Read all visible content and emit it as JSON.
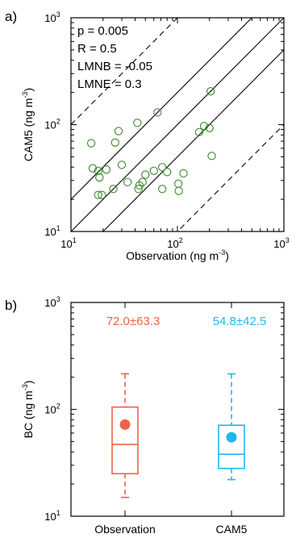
{
  "colors": {
    "scatter": "#3a8a2a",
    "observation": "#f2624a",
    "cam5": "#1fb8ec",
    "line": "#000000"
  },
  "chart_data": [
    {
      "panel_label": "a)",
      "type": "scatter",
      "xlabel_main": "Observation (ng m",
      "xlabel_exp": "-3",
      "xlabel_end": ")",
      "ylabel_main": "CAM5 (ng m",
      "ylabel_exp": "-3",
      "ylabel_end": ")",
      "scale": "log",
      "xlim": [
        10,
        1000
      ],
      "ylim": [
        10,
        1000
      ],
      "x_ticks": [
        {
          "value": 10,
          "label": "10",
          "exp": "1"
        },
        {
          "value": 100,
          "label": "10",
          "exp": "2"
        },
        {
          "value": 1000,
          "label": "10",
          "exp": "3"
        }
      ],
      "y_ticks": [
        {
          "value": 10,
          "label": "10",
          "exp": "1"
        },
        {
          "value": 100,
          "label": "10",
          "exp": "2"
        },
        {
          "value": 1000,
          "label": "10",
          "exp": "3"
        }
      ],
      "stats": [
        "p = 0.005",
        "R = 0.5",
        "LMNB = -0.05",
        "LMNE = 0.3"
      ],
      "reference_lines": [
        {
          "factor": 1,
          "style": "solid"
        },
        {
          "factor": 2,
          "style": "solid"
        },
        {
          "factor": 0.5,
          "style": "solid"
        },
        {
          "factor": 10,
          "style": "dashed"
        },
        {
          "factor": 0.1,
          "style": "dashed"
        }
      ],
      "points": [
        {
          "x": 15.5,
          "y": 67
        },
        {
          "x": 16,
          "y": 39
        },
        {
          "x": 18,
          "y": 37
        },
        {
          "x": 18.5,
          "y": 32
        },
        {
          "x": 18,
          "y": 22
        },
        {
          "x": 19.5,
          "y": 22
        },
        {
          "x": 21.5,
          "y": 38
        },
        {
          "x": 26,
          "y": 68
        },
        {
          "x": 28,
          "y": 87
        },
        {
          "x": 25,
          "y": 25
        },
        {
          "x": 30,
          "y": 42
        },
        {
          "x": 34,
          "y": 29
        },
        {
          "x": 42,
          "y": 104
        },
        {
          "x": 44,
          "y": 27
        },
        {
          "x": 47,
          "y": 29
        },
        {
          "x": 50,
          "y": 34
        },
        {
          "x": 43,
          "y": 25
        },
        {
          "x": 60,
          "y": 37
        },
        {
          "x": 65,
          "y": 130
        },
        {
          "x": 72,
          "y": 40
        },
        {
          "x": 72,
          "y": 25
        },
        {
          "x": 80,
          "y": 36
        },
        {
          "x": 102,
          "y": 28
        },
        {
          "x": 103,
          "y": 24
        },
        {
          "x": 114,
          "y": 35
        },
        {
          "x": 160,
          "y": 85
        },
        {
          "x": 178,
          "y": 97
        },
        {
          "x": 200,
          "y": 93
        },
        {
          "x": 205,
          "y": 205
        },
        {
          "x": 210,
          "y": 51
        }
      ]
    },
    {
      "panel_label": "b)",
      "type": "box",
      "ylabel_main": "BC (ng m",
      "ylabel_exp": "-3",
      "ylabel_end": ")",
      "scale": "log",
      "ylim": [
        10,
        1000
      ],
      "y_ticks": [
        {
          "value": 10,
          "label": "10",
          "exp": "1"
        },
        {
          "value": 100,
          "label": "10",
          "exp": "2"
        },
        {
          "value": 1000,
          "label": "10",
          "exp": "3"
        }
      ],
      "categories": [
        "Observation",
        "CAM5"
      ],
      "series": [
        {
          "category": "Observation",
          "summary": "72.0±63.3",
          "mean": 72,
          "min": 15,
          "q1": 25,
          "median": 47,
          "q3": 105,
          "max": 215,
          "color": "#f2624a"
        },
        {
          "category": "CAM5",
          "summary": "54.8±42.5",
          "mean": 54.8,
          "min": 22,
          "q1": 28,
          "median": 38,
          "q3": 71,
          "max": 215,
          "color": "#1fb8ec"
        }
      ]
    }
  ]
}
